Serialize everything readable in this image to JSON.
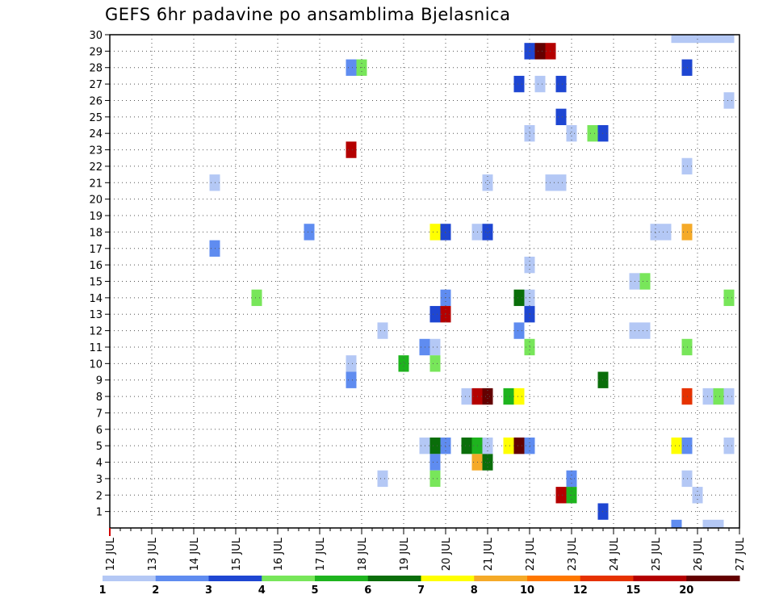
{
  "chart_data": {
    "type": "heatmap",
    "title": "GEFS 6hr padavine po ansamblima Bjelasnica",
    "xlabel": "",
    "ylabel": "",
    "x_tick_labels": [
      "12 JUL",
      "13 JUL",
      "14 JUL",
      "15 JUL",
      "16 JUL",
      "17 JUL",
      "18 JUL",
      "19 JUL",
      "20 JUL",
      "21 JUL",
      "22 JUL",
      "23 JUL",
      "24 JUL",
      "25 JUL",
      "26 JUL",
      "27 JUL"
    ],
    "y_tick_labels": [
      "1",
      "2",
      "3",
      "4",
      "5",
      "6",
      "7",
      "8",
      "9",
      "10",
      "11",
      "12",
      "13",
      "14",
      "15",
      "16",
      "17",
      "18",
      "19",
      "20",
      "21",
      "22",
      "23",
      "24",
      "25",
      "26",
      "27",
      "28",
      "29",
      "30"
    ],
    "xlim": [
      0,
      60
    ],
    "ylim": [
      0,
      30
    ],
    "grid": true,
    "legend": {
      "position": "bottom",
      "labels": [
        "1",
        "2",
        "3",
        "4",
        "5",
        "6",
        "7",
        "8",
        "10",
        "12",
        "15",
        "20"
      ],
      "colors": [
        "#b4c8f5",
        "#5f8cf0",
        "#1e46d2",
        "#78e65a",
        "#1eb41e",
        "#0a6e0a",
        "#ffff00",
        "#f5aa28",
        "#ff7800",
        "#e63200",
        "#b40000",
        "#640000"
      ]
    },
    "x_unit": "6-hour step from 12 JUL 00Z",
    "y_unit": "ensemble member",
    "cells": [
      {
        "x": 54,
        "y": 30,
        "value": 1
      },
      {
        "x": 55,
        "y": 30,
        "value": 1
      },
      {
        "x": 56,
        "y": 30,
        "value": 1
      },
      {
        "x": 57,
        "y": 30,
        "value": 1
      },
      {
        "x": 58,
        "y": 30,
        "value": 1
      },
      {
        "x": 59,
        "y": 30,
        "value": 1
      },
      {
        "x": 40,
        "y": 29,
        "value": 3
      },
      {
        "x": 41,
        "y": 29,
        "value": 20
      },
      {
        "x": 42,
        "y": 29,
        "value": 15
      },
      {
        "x": 23,
        "y": 28,
        "value": 2
      },
      {
        "x": 24,
        "y": 28,
        "value": 4
      },
      {
        "x": 55,
        "y": 28,
        "value": 3
      },
      {
        "x": 39,
        "y": 27,
        "value": 3
      },
      {
        "x": 41,
        "y": 27,
        "value": 1
      },
      {
        "x": 43,
        "y": 27,
        "value": 3
      },
      {
        "x": 59,
        "y": 26,
        "value": 1
      },
      {
        "x": 43,
        "y": 25,
        "value": 3
      },
      {
        "x": 40,
        "y": 24,
        "value": 1
      },
      {
        "x": 44,
        "y": 24,
        "value": 1
      },
      {
        "x": 46,
        "y": 24,
        "value": 4
      },
      {
        "x": 47,
        "y": 24,
        "value": 3
      },
      {
        "x": 23,
        "y": 23,
        "value": 15
      },
      {
        "x": 55,
        "y": 22,
        "value": 1
      },
      {
        "x": 10,
        "y": 21,
        "value": 1
      },
      {
        "x": 36,
        "y": 21,
        "value": 1
      },
      {
        "x": 42,
        "y": 21,
        "value": 1
      },
      {
        "x": 43,
        "y": 21,
        "value": 1
      },
      {
        "x": 19,
        "y": 18,
        "value": 2
      },
      {
        "x": 31,
        "y": 18,
        "value": 7
      },
      {
        "x": 32,
        "y": 18,
        "value": 3
      },
      {
        "x": 35,
        "y": 18,
        "value": 1
      },
      {
        "x": 36,
        "y": 18,
        "value": 3
      },
      {
        "x": 52,
        "y": 18,
        "value": 1
      },
      {
        "x": 53,
        "y": 18,
        "value": 1
      },
      {
        "x": 55,
        "y": 18,
        "value": 8
      },
      {
        "x": 10,
        "y": 17,
        "value": 2
      },
      {
        "x": 40,
        "y": 16,
        "value": 1
      },
      {
        "x": 50,
        "y": 15,
        "value": 1
      },
      {
        "x": 51,
        "y": 15,
        "value": 4
      },
      {
        "x": 14,
        "y": 14,
        "value": 4
      },
      {
        "x": 32,
        "y": 14,
        "value": 2
      },
      {
        "x": 39,
        "y": 14,
        "value": 6
      },
      {
        "x": 40,
        "y": 14,
        "value": 1
      },
      {
        "x": 59,
        "y": 14,
        "value": 4
      },
      {
        "x": 31,
        "y": 13,
        "value": 3
      },
      {
        "x": 32,
        "y": 13,
        "value": 15
      },
      {
        "x": 40,
        "y": 13,
        "value": 3
      },
      {
        "x": 26,
        "y": 12,
        "value": 1
      },
      {
        "x": 39,
        "y": 12,
        "value": 2
      },
      {
        "x": 50,
        "y": 12,
        "value": 1
      },
      {
        "x": 51,
        "y": 12,
        "value": 1
      },
      {
        "x": 30,
        "y": 11,
        "value": 2
      },
      {
        "x": 31,
        "y": 11,
        "value": 1
      },
      {
        "x": 40,
        "y": 11,
        "value": 4
      },
      {
        "x": 55,
        "y": 11,
        "value": 4
      },
      {
        "x": 23,
        "y": 10,
        "value": 1
      },
      {
        "x": 28,
        "y": 10,
        "value": 5
      },
      {
        "x": 31,
        "y": 10,
        "value": 4
      },
      {
        "x": 23,
        "y": 9,
        "value": 2
      },
      {
        "x": 47,
        "y": 9,
        "value": 6
      },
      {
        "x": 34,
        "y": 8,
        "value": 1
      },
      {
        "x": 35,
        "y": 8,
        "value": 15
      },
      {
        "x": 36,
        "y": 8,
        "value": 20
      },
      {
        "x": 38,
        "y": 8,
        "value": 5
      },
      {
        "x": 39,
        "y": 8,
        "value": 7
      },
      {
        "x": 55,
        "y": 8,
        "value": 12
      },
      {
        "x": 57,
        "y": 8,
        "value": 1
      },
      {
        "x": 58,
        "y": 8,
        "value": 4
      },
      {
        "x": 59,
        "y": 8,
        "value": 1
      },
      {
        "x": 30,
        "y": 5,
        "value": 1
      },
      {
        "x": 31,
        "y": 5,
        "value": 6
      },
      {
        "x": 32,
        "y": 5,
        "value": 2
      },
      {
        "x": 34,
        "y": 5,
        "value": 6
      },
      {
        "x": 35,
        "y": 5,
        "value": 5
      },
      {
        "x": 36,
        "y": 5,
        "value": 1
      },
      {
        "x": 38,
        "y": 5,
        "value": 7
      },
      {
        "x": 39,
        "y": 5,
        "value": 20
      },
      {
        "x": 40,
        "y": 5,
        "value": 2
      },
      {
        "x": 54,
        "y": 5,
        "value": 7
      },
      {
        "x": 55,
        "y": 5,
        "value": 2
      },
      {
        "x": 59,
        "y": 5,
        "value": 1
      },
      {
        "x": 31,
        "y": 4,
        "value": 2
      },
      {
        "x": 35,
        "y": 4,
        "value": 8
      },
      {
        "x": 36,
        "y": 4,
        "value": 6
      },
      {
        "x": 26,
        "y": 3,
        "value": 1
      },
      {
        "x": 31,
        "y": 3,
        "value": 4
      },
      {
        "x": 44,
        "y": 3,
        "value": 2
      },
      {
        "x": 55,
        "y": 3,
        "value": 1
      },
      {
        "x": 43,
        "y": 2,
        "value": 15
      },
      {
        "x": 44,
        "y": 2,
        "value": 5
      },
      {
        "x": 56,
        "y": 2,
        "value": 1
      },
      {
        "x": 47,
        "y": 1,
        "value": 3
      },
      {
        "x": 54,
        "y": 0,
        "value": 2
      },
      {
        "x": 57,
        "y": 0,
        "value": 1
      },
      {
        "x": 58,
        "y": 0,
        "value": 1
      }
    ]
  }
}
